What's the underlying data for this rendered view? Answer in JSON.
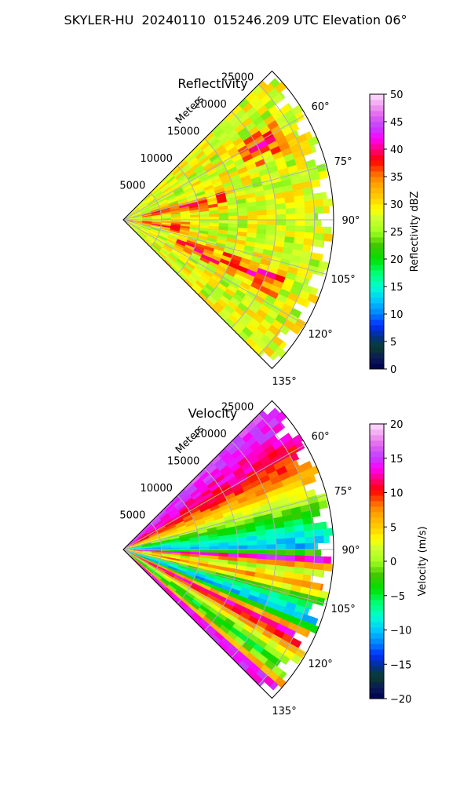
{
  "suptitle": "SKYLER-HU  20240110  015246.209 UTC Elevation 06°",
  "chart_data": [
    {
      "type": "heatmap",
      "title": "Reflectivity",
      "projection": "polar sector",
      "azimuth_range_deg": [
        45,
        135
      ],
      "range_max_m": 27500,
      "range_unit_label": "Meters",
      "radial_ticks": [
        5000,
        10000,
        15000,
        20000,
        25000
      ],
      "radial_tick_labels": [
        "5000",
        "10000",
        "15000",
        "20000",
        "25000"
      ],
      "azimuth_ticks": [
        60,
        75,
        90,
        105,
        120,
        135
      ],
      "azimuth_tick_labels": [
        "60°",
        "75°",
        "90°",
        "105°",
        "120°",
        "135°"
      ],
      "grid": true,
      "colorbar": {
        "label": "Reflectivity dBZ",
        "range": [
          0,
          50
        ],
        "ticks": [
          0,
          5,
          10,
          15,
          20,
          25,
          30,
          35,
          40,
          45,
          50
        ],
        "tick_labels": [
          "0",
          "5",
          "10",
          "15",
          "20",
          "25",
          "30",
          "35",
          "40",
          "45",
          "50"
        ]
      },
      "typical_value": 28,
      "high_value_bands": [
        {
          "azimuth_deg": 62,
          "range_m": [
            18000,
            24000
          ],
          "value": 35
        },
        {
          "azimuth_deg": 78,
          "range_m": [
            3000,
            14000
          ],
          "value": 34
        },
        {
          "azimuth_deg": 98,
          "range_m": [
            0,
            9000
          ],
          "value": 34
        },
        {
          "azimuth_deg": 112,
          "range_m": [
            8000,
            22000
          ],
          "value": 36
        }
      ]
    },
    {
      "type": "heatmap",
      "title": "Velocity",
      "projection": "polar sector",
      "azimuth_range_deg": [
        45,
        135
      ],
      "range_max_m": 27500,
      "range_unit_label": "Meters",
      "radial_ticks": [
        5000,
        10000,
        15000,
        20000,
        25000
      ],
      "radial_tick_labels": [
        "5000",
        "10000",
        "15000",
        "20000",
        "25000"
      ],
      "azimuth_ticks": [
        60,
        75,
        90,
        105,
        120,
        135
      ],
      "azimuth_tick_labels": [
        "60°",
        "75°",
        "90°",
        "105°",
        "120°",
        "135°"
      ],
      "grid": true,
      "colorbar": {
        "label": "Velocity (m/s)",
        "range": [
          -20,
          20
        ],
        "ticks": [
          -20,
          -15,
          -10,
          -5,
          0,
          5,
          10,
          15,
          20
        ],
        "tick_labels": [
          "−20",
          "−15",
          "−10",
          "−5",
          "0",
          "5",
          "10",
          "15",
          "20"
        ]
      },
      "velocity_by_azimuth": [
        {
          "azimuth_deg": 48,
          "value": 15
        },
        {
          "azimuth_deg": 58,
          "value": 12
        },
        {
          "azimuth_deg": 66,
          "value": 8
        },
        {
          "azimuth_deg": 74,
          "value": 2
        },
        {
          "azimuth_deg": 80,
          "value": -4
        },
        {
          "azimuth_deg": 86,
          "value": -9
        },
        {
          "azimuth_deg": 90,
          "value": -11
        },
        {
          "azimuth_deg": 93,
          "value": 14
        },
        {
          "azimuth_deg": 97,
          "value": 0
        },
        {
          "azimuth_deg": 101,
          "value": 8
        },
        {
          "azimuth_deg": 106,
          "value": -6
        },
        {
          "azimuth_deg": 111,
          "value": -11
        },
        {
          "azimuth_deg": 116,
          "value": 14
        },
        {
          "azimuth_deg": 121,
          "value": 5
        },
        {
          "azimuth_deg": 127,
          "value": -6
        },
        {
          "azimuth_deg": 132,
          "value": 14
        }
      ]
    }
  ]
}
